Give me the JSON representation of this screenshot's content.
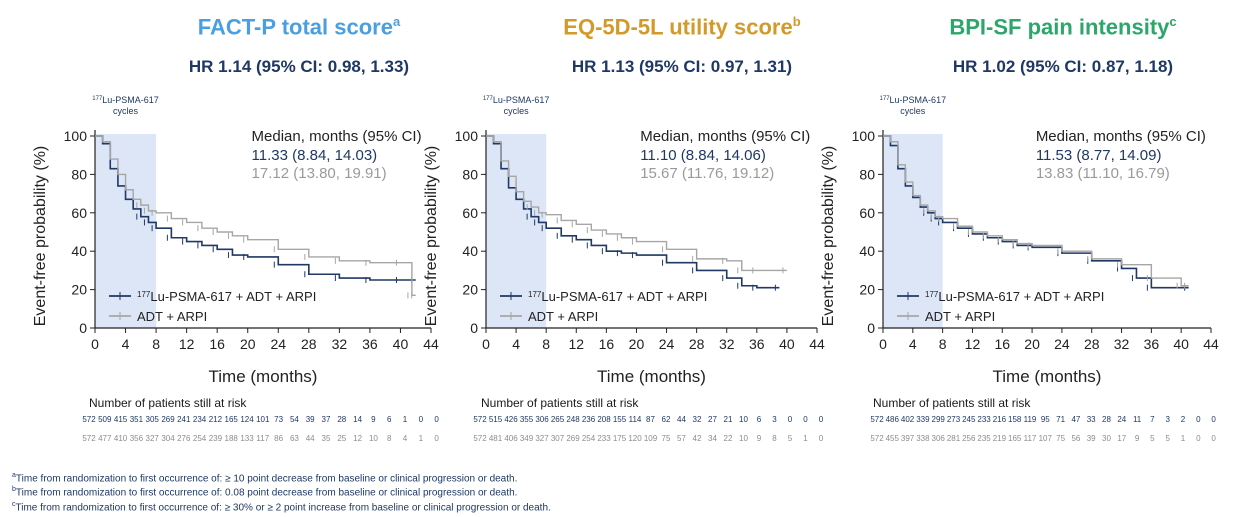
{
  "colors": {
    "treatment": "#1f3864",
    "control": "#a6a6a6",
    "shade": "#dce6f7",
    "title_p1": "#4a9fe0",
    "title_p2": "#d39a2a",
    "title_p3": "#2ca66a"
  },
  "panels": [
    {
      "title": "FACT-P total score",
      "title_sup": "a",
      "hr": "HR 1.14 (95% CI: 0.98, 1.33)",
      "median_header": "Median, months (95% CI)",
      "median_treatment": "11.33 (8.84, 14.03)",
      "median_control": "17.12 (13.80, 19.91)",
      "risk_treatment": [
        572,
        509,
        415,
        351,
        305,
        269,
        241,
        234,
        212,
        165,
        124,
        101,
        73,
        54,
        39,
        37,
        28,
        14,
        9,
        6,
        1,
        0,
        0
      ],
      "risk_control": [
        572,
        477,
        410,
        356,
        327,
        304,
        276,
        254,
        239,
        188,
        133,
        117,
        86,
        63,
        44,
        35,
        25,
        12,
        10,
        8,
        4,
        1,
        0
      ]
    },
    {
      "title": "EQ-5D-5L utility score",
      "title_sup": "b",
      "hr": "HR 1.13 (95% CI: 0.97, 1.31)",
      "median_header": "Median, months (95% CI)",
      "median_treatment": "11.10 (8.84, 14.06)",
      "median_control": "15.67 (11.76, 19.12)",
      "risk_treatment": [
        572,
        515,
        426,
        355,
        306,
        265,
        248,
        236,
        208,
        155,
        114,
        87,
        62,
        44,
        32,
        27,
        21,
        10,
        6,
        3,
        0,
        0,
        0
      ],
      "risk_control": [
        572,
        481,
        406,
        349,
        327,
        307,
        269,
        254,
        233,
        175,
        120,
        109,
        75,
        57,
        42,
        34,
        22,
        10,
        9,
        8,
        5,
        1,
        0
      ]
    },
    {
      "title": "BPI-SF pain intensity",
      "title_sup": "c",
      "hr": "HR 1.02 (95% CI: 0.87, 1.18)",
      "median_header": "Median, months (95% CI)",
      "median_treatment": "11.53 (8.77, 14.09)",
      "median_control": "13.83 (11.10, 16.79)",
      "risk_treatment": [
        572,
        486,
        402,
        339,
        299,
        273,
        245,
        233,
        216,
        158,
        119,
        95,
        71,
        47,
        33,
        28,
        24,
        11,
        7,
        3,
        2,
        0,
        0
      ],
      "risk_control": [
        572,
        455,
        397,
        338,
        306,
        281,
        256,
        235,
        219,
        165,
        117,
        107,
        75,
        56,
        39,
        30,
        17,
        9,
        5,
        5,
        1,
        0,
        0
      ]
    }
  ],
  "common": {
    "shade_label_sup": "177",
    "shade_label_line1": "Lu-PSMA-617",
    "shade_label_line2": "cycles",
    "ylabel": "Event-free probability (%)",
    "xlabel": "Time (months)",
    "legend_treatment_sup": "177",
    "legend_treatment": "Lu-PSMA-617 + ADT + ARPI",
    "legend_control": "ADT + ARPI",
    "risk_title": "Number of patients still at risk"
  },
  "footnotes": [
    {
      "sup": "a",
      "text": "Time from randomization to first occurrence of: ≥ 10 point decrease from baseline or clinical progression or death."
    },
    {
      "sup": "b",
      "text": "Time from randomization to first occurrence of: 0.08 point decrease from baseline or clinical progression or death."
    },
    {
      "sup": "c",
      "text": "Time from randomization to first occurrence of: ≥ 30% or ≥ 2 point increase from baseline or clinical progression or death."
    }
  ],
  "chart_data": [
    {
      "type": "line",
      "title": "FACT-P total score",
      "xlabel": "Time (months)",
      "ylabel": "Event-free probability (%)",
      "xlim": [
        0,
        44
      ],
      "ylim": [
        0,
        100
      ],
      "xticks": [
        0,
        4,
        8,
        12,
        16,
        20,
        24,
        28,
        32,
        36,
        40,
        44
      ],
      "yticks": [
        0,
        20,
        40,
        60,
        80,
        100
      ],
      "shaded_region_x": [
        0,
        8
      ],
      "legend_position": "bottom-left",
      "series": [
        {
          "name": "177Lu-PSMA-617 + ADT + ARPI",
          "x": [
            0,
            1,
            2,
            3,
            4,
            5,
            6,
            7,
            8,
            10,
            12,
            14,
            16,
            18,
            20,
            24,
            28,
            32,
            36,
            40,
            42
          ],
          "y": [
            100,
            96,
            83,
            74,
            67,
            62,
            58,
            55,
            52,
            47,
            45,
            43,
            41,
            38,
            37,
            33,
            28,
            26,
            25,
            25,
            25
          ]
        },
        {
          "name": "ADT + ARPI",
          "x": [
            0,
            1,
            2,
            3,
            4,
            5,
            6,
            7,
            8,
            10,
            12,
            14,
            16,
            18,
            20,
            24,
            28,
            32,
            36,
            40,
            41.5,
            42
          ],
          "y": [
            100,
            97,
            88,
            80,
            72,
            67,
            64,
            61,
            60,
            57,
            55,
            52,
            50,
            48,
            46,
            41,
            37,
            35,
            34,
            34,
            17,
            17
          ]
        }
      ]
    },
    {
      "type": "line",
      "title": "EQ-5D-5L utility score",
      "xlabel": "Time (months)",
      "ylabel": "Event-free probability (%)",
      "xlim": [
        0,
        44
      ],
      "ylim": [
        0,
        100
      ],
      "xticks": [
        0,
        4,
        8,
        12,
        16,
        20,
        24,
        28,
        32,
        36,
        40,
        44
      ],
      "yticks": [
        0,
        20,
        40,
        60,
        80,
        100
      ],
      "shaded_region_x": [
        0,
        8
      ],
      "legend_position": "bottom-left",
      "series": [
        {
          "name": "177Lu-PSMA-617 + ADT + ARPI",
          "x": [
            0,
            1,
            2,
            3,
            4,
            5,
            6,
            7,
            8,
            10,
            12,
            14,
            16,
            18,
            20,
            24,
            28,
            32,
            34,
            36,
            39
          ],
          "y": [
            100,
            96,
            83,
            73,
            67,
            62,
            58,
            55,
            52,
            48,
            46,
            43,
            40,
            39,
            38,
            34,
            30,
            26,
            22,
            21,
            21
          ]
        },
        {
          "name": "ADT + ARPI",
          "x": [
            0,
            1,
            2,
            3,
            4,
            5,
            6,
            7,
            8,
            10,
            12,
            14,
            16,
            18,
            20,
            24,
            28,
            32,
            34,
            36,
            40
          ],
          "y": [
            100,
            97,
            87,
            79,
            71,
            66,
            63,
            60,
            59,
            56,
            54,
            51,
            49,
            47,
            45,
            41,
            36,
            35,
            30,
            30,
            30
          ]
        }
      ]
    },
    {
      "type": "line",
      "title": "BPI-SF pain intensity",
      "xlabel": "Time (months)",
      "ylabel": "Event-free probability (%)",
      "xlim": [
        0,
        44
      ],
      "ylim": [
        0,
        100
      ],
      "xticks": [
        0,
        4,
        8,
        12,
        16,
        20,
        24,
        28,
        32,
        36,
        40,
        44
      ],
      "yticks": [
        0,
        20,
        40,
        60,
        80,
        100
      ],
      "shaded_region_x": [
        0,
        8
      ],
      "legend_position": "bottom-left",
      "series": [
        {
          "name": "177Lu-PSMA-617 + ADT + ARPI",
          "x": [
            0,
            1,
            2,
            3,
            4,
            5,
            6,
            7,
            8,
            10,
            12,
            14,
            16,
            18,
            20,
            24,
            28,
            32,
            34,
            36,
            41
          ],
          "y": [
            100,
            95,
            83,
            74,
            68,
            63,
            60,
            57,
            55,
            52,
            49,
            47,
            45,
            43,
            42,
            39,
            35,
            31,
            26,
            21,
            21
          ]
        },
        {
          "name": "ADT + ARPI",
          "x": [
            0,
            1,
            2,
            3,
            4,
            5,
            6,
            7,
            8,
            10,
            12,
            14,
            16,
            18,
            20,
            24,
            28,
            32,
            36,
            40,
            41
          ],
          "y": [
            100,
            97,
            85,
            76,
            69,
            64,
            61,
            58,
            57,
            53,
            50,
            48,
            46,
            44,
            43,
            40,
            36,
            33,
            26,
            22,
            22
          ]
        }
      ]
    }
  ]
}
